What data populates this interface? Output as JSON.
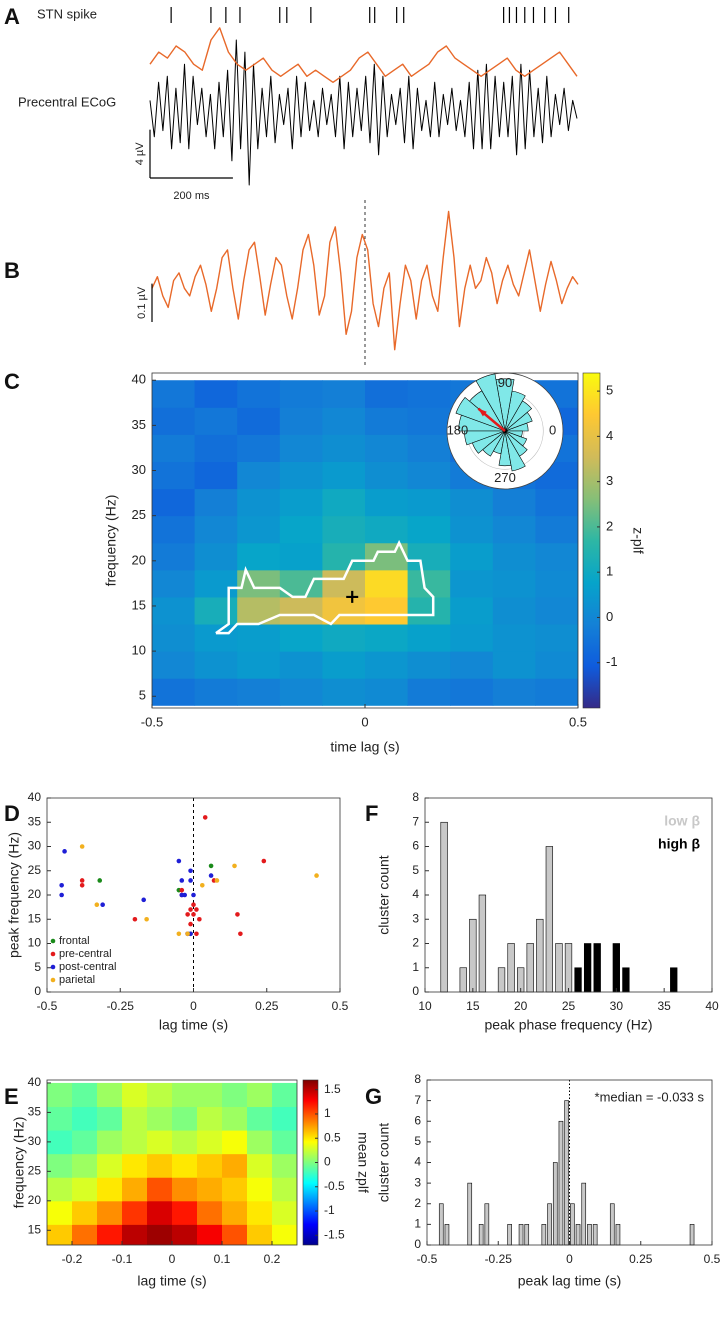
{
  "chart_data": [
    {
      "panel": "A",
      "type": "line",
      "xlim": [
        0,
        1030
      ],
      "ylim": [
        -6,
        6
      ],
      "spikes": {
        "label": "STN spike",
        "x": [
          51,
          147,
          183,
          217,
          313,
          330,
          388,
          530,
          542,
          595,
          612,
          853,
          867,
          884,
          904,
          925,
          952,
          978,
          1010
        ]
      },
      "series": [
        {
          "name": "Precentral ECoG",
          "color": "#000000",
          "values": [
            1,
            -2,
            2.5,
            -1.5,
            3,
            -3,
            2,
            -2.5,
            4,
            -3,
            3,
            -1,
            2,
            -2,
            1.5,
            -3,
            2.5,
            -2,
            3.5,
            -4,
            6,
            -3,
            5,
            -6,
            4,
            -3,
            2,
            -2,
            3,
            -2.5,
            1.5,
            -1,
            2,
            -3,
            3,
            -2,
            2.5,
            -1.5,
            1,
            -2,
            2,
            -1,
            1.5,
            -2,
            3,
            -3,
            2.5,
            -2,
            2,
            -1.5,
            3,
            -2.5,
            4,
            -3.5,
            3,
            -2,
            1.5,
            -1,
            2,
            -2.5,
            3,
            -3,
            2,
            -1.5,
            1,
            -2,
            2.5,
            -2,
            1.5,
            -1,
            2,
            -1.5,
            1,
            -2,
            2.5,
            -3,
            3.5,
            -3,
            4,
            -3,
            3,
            -2,
            2.5,
            -2,
            3,
            -3.5,
            4,
            -3,
            3.5,
            -2,
            2,
            -2.5,
            3,
            -2,
            1.5,
            -1,
            2,
            -1.5,
            1,
            -0.5
          ]
        },
        {
          "color": "#e8692a",
          "values": [
            4,
            5,
            4.5,
            5.5,
            5,
            4,
            3.5,
            6,
            7,
            5,
            4,
            3.5,
            4,
            4.5,
            3.5,
            3,
            3.5,
            4,
            3,
            3.5,
            3,
            2.5,
            3,
            3.5,
            4.5,
            5,
            4,
            3,
            3.5,
            4,
            3,
            3.5,
            4,
            5,
            5.5,
            4.5,
            4,
            3.5,
            3,
            3.5,
            4,
            4.5,
            3.5,
            3,
            3.5,
            4,
            4.5,
            5,
            4,
            3
          ]
        }
      ],
      "scale_bar": {
        "value": 4,
        "label": "4 µV"
      },
      "time_bar": {
        "value": 200,
        "label": "200 ms"
      }
    },
    {
      "panel": "B",
      "type": "line",
      "ylim": [
        -0.18,
        0.25
      ],
      "series": [
        {
          "color": "#e8692a",
          "values": [
            0.02,
            0.05,
            0.0,
            -0.03,
            0.04,
            0.06,
            0.02,
            0.0,
            0.05,
            0.08,
            0.03,
            -0.04,
            0.02,
            0.1,
            0.12,
            0.02,
            -0.06,
            0.04,
            0.12,
            0.14,
            0.05,
            -0.05,
            0.03,
            0.1,
            0.08,
            0.0,
            -0.06,
            0.02,
            0.12,
            0.16,
            0.08,
            -0.05,
            0.0,
            0.14,
            0.18,
            0.06,
            -0.1,
            -0.04,
            0.1,
            0.16,
            0.12,
            -0.02,
            -0.08,
            0.02,
            0.06,
            -0.14,
            -0.02,
            0.08,
            0.04,
            -0.06,
            0.04,
            0.08,
            0.0,
            -0.04,
            0.1,
            0.22,
            0.1,
            -0.08,
            0.02,
            0.08,
            0.02,
            0.04,
            0.1,
            0.06,
            -0.02,
            0.04,
            0.08,
            0.03,
            0.0,
            0.06,
            0.12,
            0.04,
            -0.04,
            0.03,
            0.09,
            0.04,
            -0.02,
            0.02,
            0.05,
            0.03
          ]
        }
      ],
      "scale_bar": {
        "value": 0.1,
        "label": "0.1 µV"
      }
    },
    {
      "panel": "C",
      "type": "heatmap",
      "xlabel": "time lag (s)",
      "ylabel": "frequency (Hz)",
      "xlim": [
        -0.5,
        0.5
      ],
      "ylim": [
        3.7,
        40.8
      ],
      "xticks": [
        -0.5,
        0,
        0.5
      ],
      "yticks": [
        5,
        10,
        15,
        20,
        25,
        30,
        35,
        40
      ],
      "x": [
        -0.45,
        -0.35,
        -0.25,
        -0.15,
        -0.05,
        0.05,
        0.15,
        0.25,
        0.35,
        0.45
      ],
      "y": [
        5.5,
        8.5,
        11.5,
        14.5,
        17.5,
        20.5,
        23.5,
        26.5,
        29.5,
        32.5,
        35.5,
        38.5
      ],
      "z": [
        [
          -0.5,
          -0.3,
          -0.2,
          0,
          0.2,
          0.1,
          -0.3,
          -0.4,
          -0.2,
          -0.3
        ],
        [
          0,
          0.3,
          0.5,
          0.3,
          0.6,
          0.4,
          0.2,
          0,
          0.3,
          0.1
        ],
        [
          0.2,
          0.5,
          0.6,
          0.8,
          1.0,
          0.9,
          0.7,
          0.5,
          0.3,
          0.2
        ],
        [
          0.3,
          1.2,
          3.2,
          3.5,
          4.2,
          4.5,
          1.5,
          0.6,
          0.2,
          0.0
        ],
        [
          0.0,
          0.5,
          2.5,
          2.0,
          3.5,
          4.8,
          1.8,
          0.4,
          0.3,
          0.1
        ],
        [
          -0.3,
          0.2,
          0.8,
          0.7,
          1.5,
          2.5,
          1.2,
          0.6,
          0.2,
          0.0
        ],
        [
          -0.5,
          0.0,
          0.4,
          0.8,
          1.2,
          1.0,
          0.8,
          0.3,
          0.0,
          -0.3
        ],
        [
          -0.8,
          -0.2,
          0.3,
          0.6,
          1.0,
          0.6,
          0.5,
          0.2,
          -0.2,
          -0.5
        ],
        [
          -0.5,
          -0.8,
          0.0,
          0.3,
          0.5,
          0.2,
          0.0,
          -0.3,
          -0.5,
          -0.7
        ],
        [
          -0.3,
          -0.6,
          -0.4,
          0.0,
          0.2,
          0.0,
          -0.2,
          -0.6,
          -0.4,
          -0.5
        ],
        [
          -0.6,
          -0.4,
          -0.7,
          -0.2,
          0.0,
          -0.3,
          -0.4,
          -0.6,
          -0.3,
          -0.8
        ],
        [
          -0.4,
          -0.8,
          -0.5,
          -0.3,
          -0.2,
          -0.6,
          -0.5,
          -0.4,
          -0.7,
          -0.5
        ]
      ],
      "zlim": [
        -2,
        5.4
      ],
      "colormap": [
        "#352a87",
        "#0f5cdd",
        "#1481d6",
        "#06a4ca",
        "#2eb7a4",
        "#87bf77",
        "#d1bb59",
        "#fec832",
        "#f9fb0e"
      ],
      "colorbar": {
        "label": "z-plf",
        "ticks": [
          -1,
          0,
          1,
          2,
          3,
          4,
          5
        ]
      },
      "contour": {
        "color": "#ffffff",
        "x": [
          -0.35,
          -0.32,
          -0.32,
          -0.29,
          -0.28,
          -0.26,
          -0.2,
          -0.17,
          -0.14,
          -0.12,
          -0.05,
          -0.03,
          0.02,
          0.03,
          0.07,
          0.08,
          0.1,
          0.13,
          0.14,
          0.16,
          0.16,
          0.12,
          0.0,
          -0.06,
          -0.08,
          -0.12,
          -0.2,
          -0.25,
          -0.3,
          -0.32,
          -0.35
        ],
        "y": [
          12,
          13,
          17,
          17,
          19,
          17,
          17,
          16,
          16,
          18,
          18,
          20,
          20,
          21,
          21,
          22,
          20,
          20,
          17,
          16,
          14,
          14,
          14,
          14,
          13,
          14,
          14,
          13,
          13,
          12,
          12
        ]
      },
      "peak": {
        "x": -0.03,
        "y": 16
      },
      "inset": {
        "color": "#80e8e8",
        "rlim": [
          0,
          10
        ],
        "angle_ticks": [
          90,
          180,
          0,
          270
        ],
        "bins": [
          0,
          20,
          40,
          60,
          80,
          100,
          120,
          140,
          160,
          180,
          200,
          220,
          240,
          260,
          280,
          300,
          320,
          340,
          360
        ],
        "values": [
          4,
          5,
          6,
          7,
          9,
          10,
          8,
          9,
          8,
          7,
          6,
          5,
          4,
          6,
          7,
          5,
          4,
          3
        ],
        "mean_vector": {
          "angle": 140,
          "length": 6,
          "color": "#e31a1c"
        }
      }
    },
    {
      "panel": "D",
      "type": "scatter",
      "xlabel": "lag time (s)",
      "ylabel": "peak frequency (Hz)",
      "xlim": [
        -0.5,
        0.5
      ],
      "ylim": [
        0,
        40
      ],
      "xticks": [
        -0.5,
        -0.25,
        0,
        0.25,
        0.5
      ],
      "yticks": [
        0,
        5,
        10,
        15,
        20,
        25,
        30,
        35,
        40
      ],
      "legend": "lower left",
      "series": [
        {
          "name": "frontal",
          "color": "#1a8a1a",
          "x": [
            -0.32,
            -0.05,
            0.06,
            -0.01
          ],
          "y": [
            23,
            21,
            26,
            12
          ]
        },
        {
          "name": "pre-central",
          "color": "#e31a1c",
          "x": [
            -0.38,
            -0.38,
            -0.2,
            -0.04,
            -0.02,
            -0.01,
            0.0,
            0.0,
            -0.01,
            0.01,
            0.01,
            0.02,
            -0.02,
            0.04,
            0.07,
            0.15,
            0.16,
            0.24,
            -0.04
          ],
          "y": [
            22,
            23,
            15,
            21,
            16,
            17,
            16,
            18,
            14,
            17,
            12,
            15,
            12,
            36,
            23,
            16,
            12,
            27,
            20
          ]
        },
        {
          "name": "post-central",
          "color": "#1f1fd6",
          "x": [
            -0.44,
            -0.45,
            -0.45,
            -0.31,
            -0.17,
            -0.05,
            -0.04,
            -0.04,
            -0.03,
            -0.01,
            -0.01,
            0.0,
            0.06,
            -0.01,
            -0.02
          ],
          "y": [
            29,
            22,
            20,
            18,
            19,
            27,
            23,
            20,
            20,
            25,
            23,
            20,
            24,
            12,
            12
          ]
        },
        {
          "name": "parietal",
          "color": "#f2b01e",
          "x": [
            -0.38,
            -0.33,
            -0.16,
            -0.05,
            0.03,
            0.08,
            0.14,
            0.42,
            -0.02
          ],
          "y": [
            30,
            18,
            15,
            12,
            22,
            23,
            26,
            24,
            12
          ]
        }
      ]
    },
    {
      "panel": "E",
      "type": "heatmap",
      "xlabel": "lag time (s)",
      "ylabel": "frequency (Hz)",
      "xlim": [
        -0.25,
        0.25
      ],
      "ylim": [
        12.5,
        40.5
      ],
      "xticks": [
        -0.2,
        -0.1,
        0,
        0.1,
        0.2
      ],
      "yticks": [
        15,
        20,
        25,
        30,
        35,
        40
      ],
      "x": [
        -0.225,
        -0.175,
        -0.125,
        -0.075,
        -0.025,
        0.025,
        0.075,
        0.125,
        0.175,
        0.225
      ],
      "y": [
        14,
        18,
        22,
        26,
        30,
        34,
        38
      ],
      "z": [
        [
          0.6,
          0.9,
          1.2,
          1.5,
          1.6,
          1.5,
          1.3,
          1.0,
          0.6,
          0.4
        ],
        [
          0.4,
          0.6,
          0.8,
          1.1,
          1.4,
          1.2,
          0.9,
          0.7,
          0.5,
          0.3
        ],
        [
          0.2,
          0.3,
          0.5,
          0.7,
          1.0,
          0.8,
          0.7,
          0.6,
          0.4,
          0.2
        ],
        [
          0.0,
          0.1,
          0.3,
          0.5,
          0.6,
          0.5,
          0.6,
          0.7,
          0.3,
          0.1
        ],
        [
          -0.2,
          -0.1,
          0.1,
          0.2,
          0.3,
          0.2,
          0.3,
          0.4,
          0.1,
          -0.1
        ],
        [
          -0.1,
          -0.2,
          -0.1,
          0.2,
          0.1,
          0.0,
          0.2,
          0.1,
          -0.1,
          -0.2
        ],
        [
          0.0,
          -0.1,
          0.1,
          0.3,
          0.2,
          0.1,
          0.1,
          0.0,
          0.1,
          -0.1
        ]
      ],
      "zlim": [
        -1.7,
        1.7
      ],
      "colormap": [
        "#00008f",
        "#0000ff",
        "#007fff",
        "#00ffff",
        "#7fff7f",
        "#ffff00",
        "#ff7f00",
        "#ff0000",
        "#7f0000"
      ],
      "colorbar": {
        "label": "mean zplf",
        "ticks": [
          -1.5,
          -1,
          -0.5,
          0,
          0.5,
          1,
          1.5
        ]
      }
    },
    {
      "panel": "F",
      "type": "histogram",
      "xlabel": "peak phase frequency (Hz)",
      "ylabel": "cluster count",
      "xlim": [
        10,
        40
      ],
      "ylim": [
        0,
        8
      ],
      "xticks": [
        10,
        15,
        20,
        25,
        30,
        35,
        40
      ],
      "yticks": [
        0,
        1,
        2,
        3,
        4,
        5,
        6,
        7,
        8
      ],
      "legend": "upper right",
      "bins": [
        11.5,
        12.5,
        13.5,
        14.5,
        15.5,
        16.5,
        17.5,
        18.5,
        19.5,
        20.5,
        21.5,
        22.5,
        23.5,
        24.5,
        25.5,
        26.5,
        27.5,
        28.5,
        29.5,
        30.5,
        31.5,
        32.5,
        33.5,
        34.5,
        35.5,
        36.5
      ],
      "series": [
        {
          "name": "low β",
          "color": "#c8c8c8",
          "values": [
            7,
            0,
            1,
            3,
            4,
            0,
            1,
            2,
            1,
            2,
            3,
            6,
            2,
            2,
            0,
            0,
            0,
            0,
            0,
            0,
            0,
            0,
            0,
            0,
            0
          ]
        },
        {
          "name": "high β",
          "color": "#000000",
          "values": [
            0,
            0,
            0,
            0,
            0,
            0,
            0,
            0,
            0,
            0,
            0,
            0,
            0,
            0,
            1,
            2,
            2,
            0,
            2,
            1,
            0,
            0,
            0,
            0,
            1
          ]
        }
      ]
    },
    {
      "panel": "G",
      "type": "histogram",
      "xlabel": "peak lag time (s)",
      "ylabel": "cluster count",
      "xlim": [
        -0.5,
        0.5
      ],
      "ylim": [
        0,
        8
      ],
      "xticks": [
        -0.5,
        -0.25,
        0,
        0.25,
        0.5
      ],
      "yticks": [
        0,
        1,
        2,
        3,
        4,
        5,
        6,
        7,
        8
      ],
      "annotation": "*median = -0.033 s",
      "bins": [
        -0.5,
        -0.48,
        -0.46,
        -0.44,
        -0.42,
        -0.4,
        -0.38,
        -0.36,
        -0.34,
        -0.32,
        -0.3,
        -0.28,
        -0.26,
        -0.24,
        -0.22,
        -0.2,
        -0.18,
        -0.16,
        -0.14,
        -0.12,
        -0.1,
        -0.08,
        -0.06,
        -0.04,
        -0.02,
        0,
        0.02,
        0.04,
        0.06,
        0.08,
        0.1,
        0.12,
        0.14,
        0.16,
        0.18,
        0.2,
        0.22,
        0.24,
        0.26,
        0.28,
        0.3,
        0.32,
        0.34,
        0.36,
        0.38,
        0.4,
        0.42,
        0.44,
        0.46,
        0.48,
        0.5
      ],
      "series": [
        {
          "color": "#c8c8c8",
          "values": [
            0,
            0,
            2,
            1,
            0,
            0,
            0,
            3,
            0,
            1,
            2,
            0,
            0,
            0,
            1,
            0,
            1,
            1,
            0,
            0,
            1,
            2,
            4,
            6,
            7,
            2,
            1,
            3,
            1,
            1,
            0,
            0,
            2,
            1,
            0,
            0,
            0,
            0,
            0,
            0,
            0,
            0,
            0,
            0,
            0,
            0,
            1,
            0,
            0,
            0
          ]
        }
      ]
    }
  ]
}
